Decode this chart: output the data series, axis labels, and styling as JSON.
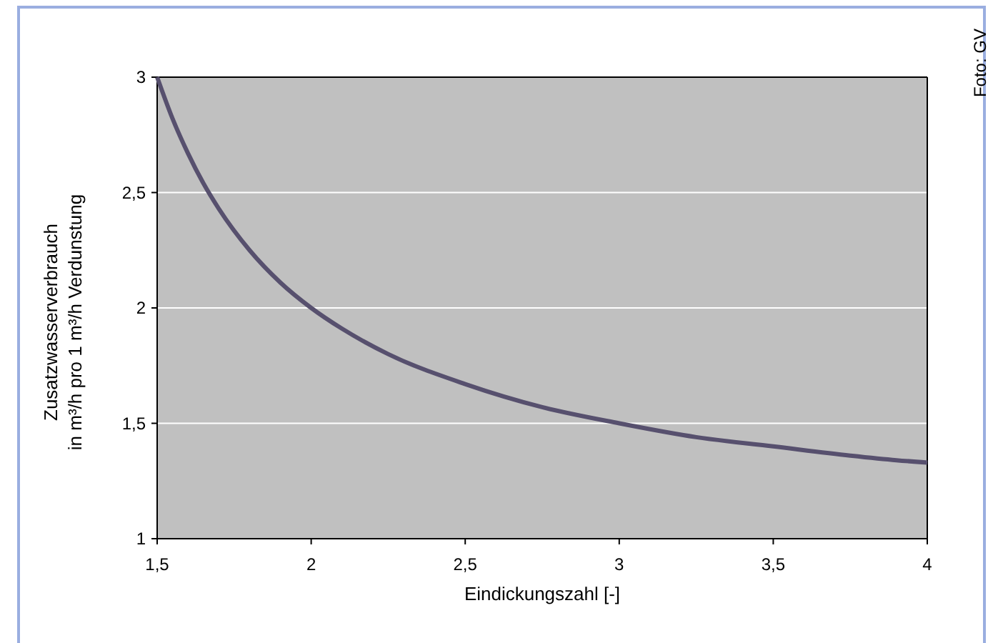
{
  "chart_data": {
    "type": "line",
    "xlabel": "Eindickungszahl [-]",
    "ylabel": "Zusatzwasserverbrauch\nin m³/h pro 1 m³/h Verdunstung",
    "x": [
      1.5,
      1.55,
      1.6,
      1.65,
      1.7,
      1.8,
      1.9,
      2,
      2.1,
      2.25,
      2.5,
      2.75,
      3,
      3.25,
      3.5,
      3.75,
      3.9,
      4
    ],
    "series": [
      {
        "color": "#57506e",
        "values": [
          3,
          2.82,
          2.67,
          2.54,
          2.43,
          2.25,
          2.11,
          2,
          1.91,
          1.8,
          1.67,
          1.57,
          1.5,
          1.44,
          1.4,
          1.36,
          1.34,
          1.33
        ]
      }
    ],
    "xlim": [
      1.5,
      4
    ],
    "xticks": [
      {
        "value": 1.5,
        "label": "1,5"
      },
      2,
      {
        "value": 2.5,
        "label": "2,5"
      },
      3,
      {
        "value": 3.5,
        "label": "3,5"
      },
      4
    ],
    "ylim": [
      1,
      3
    ],
    "yticks": [
      1,
      {
        "value": 1.5,
        "label": "1,5"
      },
      2,
      {
        "value": 2.5,
        "label": "2,5"
      },
      3
    ],
    "grid": "y",
    "marker": "none",
    "line_style": "solid",
    "annotations": [
      "Foto: GV"
    ]
  }
}
